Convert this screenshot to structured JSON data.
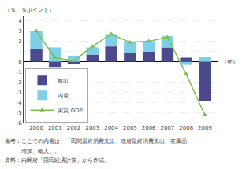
{
  "chart_data": {
    "type": "bar",
    "stacked": true,
    "ylabel": "（％、％ポイント）",
    "xlabel": "（年）",
    "annotations": [
      "備考：ここでの内需は、「民間最終消費支出、政府最終消費支出、在庫品",
      "　　　増加、輸入」。",
      "資料：内閣府「国民経済計算」から作成。"
    ],
    "categories": [
      "2000",
      "2001",
      "2002",
      "2003",
      "2004",
      "2005",
      "2006",
      "2007",
      "2008",
      "2009"
    ],
    "series": [
      {
        "name": "輸出",
        "color": "#4a4a8c",
        "values": [
          1.3,
          -0.5,
          -0.2,
          0.7,
          1.5,
          0.9,
          1.0,
          1.4,
          0.4,
          -3.8
        ]
      },
      {
        "name": "内需",
        "color": "#7ecfe8",
        "values": [
          1.7,
          1.4,
          0.6,
          0.7,
          1.2,
          1.1,
          1.0,
          1.1,
          -0.3,
          0.5
        ]
      },
      {
        "name": "実質 GDP",
        "type": "line",
        "color": "#7dc050",
        "marker": "triangle-up",
        "line_style": "solid",
        "values": [
          3.0,
          0.4,
          0.1,
          1.5,
          2.7,
          1.9,
          2.0,
          2.4,
          -1.2,
          -5.2
        ]
      }
    ],
    "ylim": [
      -6,
      4.5
    ],
    "yticks": [
      -6,
      -5,
      -4,
      -3,
      -2,
      -1,
      0,
      1,
      2,
      3,
      4
    ],
    "grid": true,
    "legend": "lower left"
  }
}
